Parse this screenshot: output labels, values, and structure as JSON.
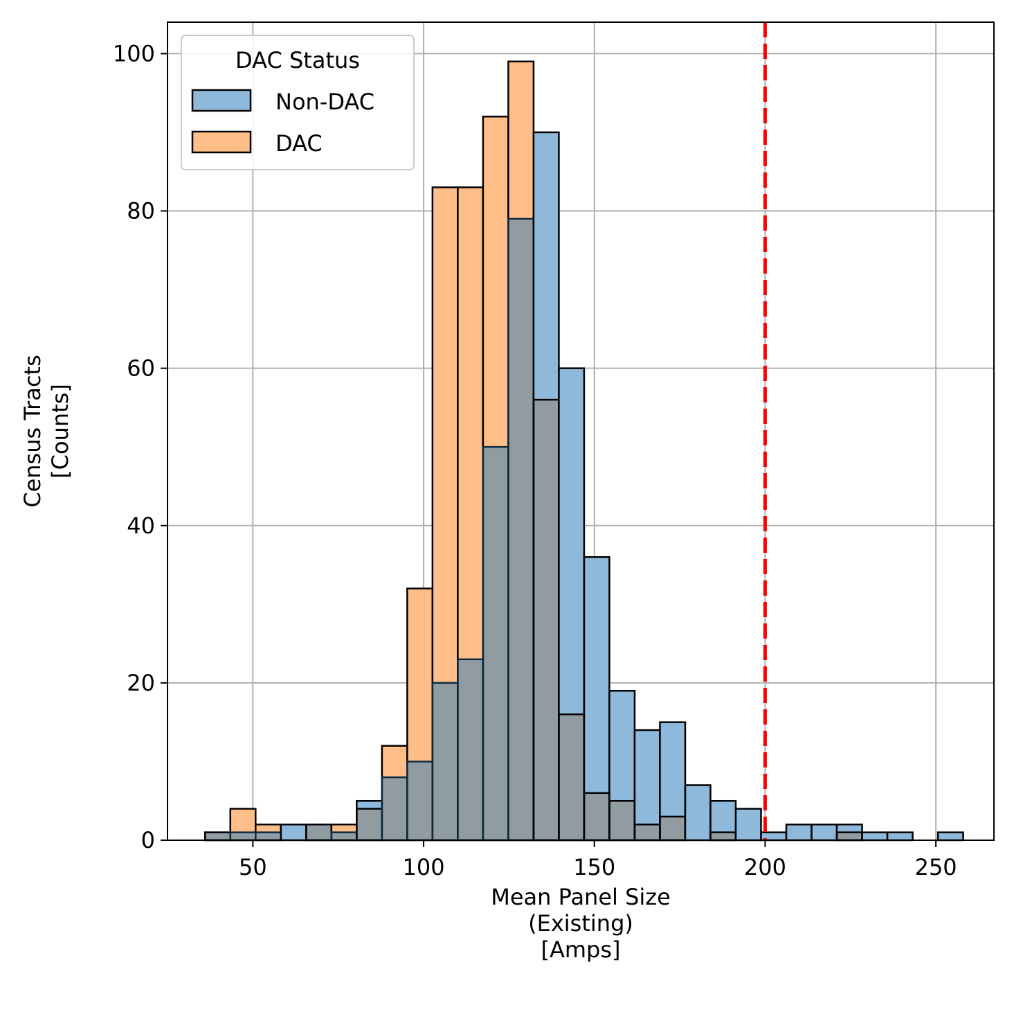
{
  "chart_data": {
    "type": "bar",
    "subtype": "overlaid histogram",
    "xlabel_lines": [
      "Mean Panel Size",
      "(Existing)",
      "[Amps]"
    ],
    "ylabel_lines": [
      "Census Tracts",
      "[Counts]"
    ],
    "xlim": [
      25.0,
      267.0
    ],
    "ylim": [
      0,
      104
    ],
    "xticks": [
      50,
      100,
      150,
      200,
      250
    ],
    "yticks": [
      0,
      20,
      40,
      60,
      80,
      100
    ],
    "grid": true,
    "bin_edges": [
      36.0,
      43.4,
      50.8,
      58.2,
      65.6,
      73.0,
      80.4,
      87.8,
      95.2,
      102.6,
      110.0,
      117.4,
      124.8,
      132.2,
      139.6,
      147.0,
      154.4,
      161.8,
      169.2,
      176.6,
      184.0,
      191.4,
      198.8,
      206.2,
      213.6,
      221.0,
      228.4,
      235.8,
      243.2,
      250.6,
      258.0
    ],
    "legend": {
      "title": "DAC Status",
      "position": "top-left",
      "entries": [
        {
          "label": "Non-DAC",
          "color": "#8fb9da"
        },
        {
          "label": "DAC",
          "color": "#ffbe87"
        }
      ]
    },
    "series": [
      {
        "name": "Non-DAC",
        "color": "#8fb9da",
        "values": [
          1,
          1,
          1,
          2,
          2,
          1,
          5,
          8,
          10,
          20,
          23,
          50,
          79,
          90,
          60,
          36,
          19,
          14,
          15,
          7,
          5,
          4,
          1,
          2,
          2,
          2,
          1,
          1,
          0,
          1
        ]
      },
      {
        "name": "DAC",
        "color": "#ffbe87",
        "values": [
          1,
          4,
          2,
          0,
          2,
          2,
          4,
          12,
          32,
          83,
          83,
          92,
          99,
          56,
          16,
          6,
          5,
          2,
          3,
          0,
          1,
          0,
          0,
          0,
          0,
          1,
          0,
          0,
          0,
          0
        ]
      }
    ],
    "overlap_color": "#909ba2",
    "reference_line": {
      "x": 200,
      "color": "#ff0000",
      "style": "dashed"
    }
  }
}
